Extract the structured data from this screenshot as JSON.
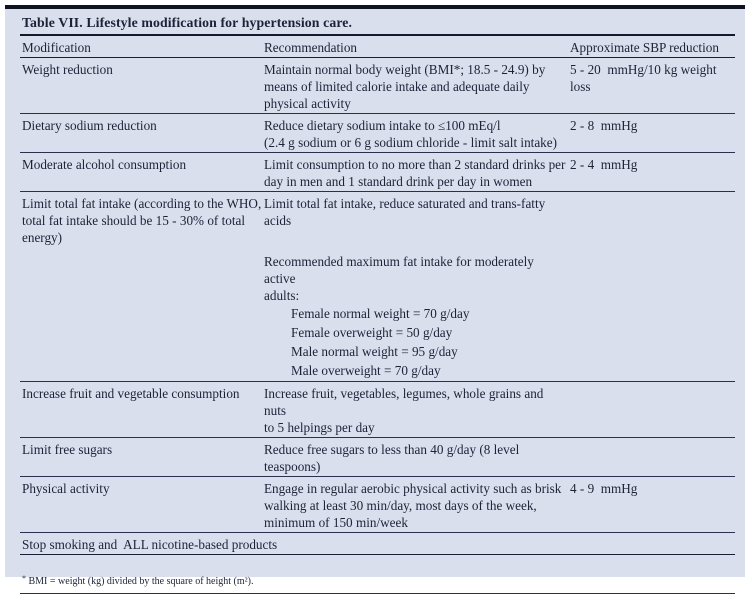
{
  "table": {
    "title": "Table VII. Lifestyle modification for hypertension care.",
    "columns": [
      "Modification",
      "Recommendation",
      "Approximate SBP reduction"
    ],
    "rows": [
      {
        "modification": [
          "Weight reduction"
        ],
        "recommendation": [
          {
            "t": "Maintain normal body weight (BMI*; 18.5 - 24.9) by"
          },
          {
            "t": "means of limited calorie intake and adequate daily"
          },
          {
            "t": "physical activity"
          }
        ],
        "sbp": "5 - 20  mmHg/10 kg weight loss"
      },
      {
        "modification": [
          "Dietary sodium reduction"
        ],
        "recommendation": [
          {
            "t": "Reduce dietary sodium intake to ≤100 mEq/l"
          },
          {
            "t": "(2.4 g sodium or 6 g sodium chloride - limit salt intake)"
          }
        ],
        "sbp": "2 - 8  mmHg"
      },
      {
        "modification": [
          "Moderate alcohol consumption"
        ],
        "recommendation": [
          {
            "t": "Limit consumption to no more than 2 standard drinks per"
          },
          {
            "t": "day in men and 1 standard drink per day in women"
          }
        ],
        "sbp": "2 - 4  mmHg"
      },
      {
        "modification": [
          "Limit total fat intake (according to the WHO,",
          "total fat intake should be 15 - 30% of total",
          "energy)"
        ],
        "recommendation": [
          {
            "t": "Limit total fat intake, reduce saturated and trans-fatty"
          },
          {
            "t": "acids"
          },
          {
            "t": ""
          },
          {
            "t": "Recommended maximum fat intake for moderately active"
          },
          {
            "t": "adults:"
          },
          {
            "t": "Female normal weight = 70 g/day",
            "ind": 1
          },
          {
            "t": "Female overweight = 50 g/day",
            "ind": 1
          },
          {
            "t": "Male normal weight = 95 g/day",
            "ind": 1
          },
          {
            "t": "Male overweight = 70 g/day",
            "ind": 1
          }
        ],
        "sbp": ""
      },
      {
        "modification": [
          "Increase fruit and vegetable consumption"
        ],
        "recommendation": [
          {
            "t": "Increase fruit, vegetables, legumes, whole grains and nuts"
          },
          {
            "t": "to 5 helpings per day"
          }
        ],
        "sbp": ""
      },
      {
        "modification": [
          "Limit free sugars"
        ],
        "recommendation": [
          {
            "t": "Reduce free sugars to less than 40 g/day (8 level"
          },
          {
            "t": "teaspoons)"
          }
        ],
        "sbp": ""
      },
      {
        "modification": [
          "Physical activity"
        ],
        "recommendation": [
          {
            "t": "Engage in regular aerobic physical activity such as brisk"
          },
          {
            "t": "walking at least 30 min/day, most days of the week,"
          },
          {
            "t": "minimum of 150 min/week"
          }
        ],
        "sbp": "4 - 9  mmHg"
      }
    ],
    "full_width_row": "Stop smoking and  ALL nicotine-based products"
  },
  "footnote": {
    "marker": "*",
    "text": "BMI = weight (kg) divided by the square of height (m²)."
  },
  "colors": {
    "panel_bg": "#dadfee",
    "text": "#1c2337",
    "thin_rule": "#2a3150",
    "heavy_rule": "#0e1320"
  }
}
